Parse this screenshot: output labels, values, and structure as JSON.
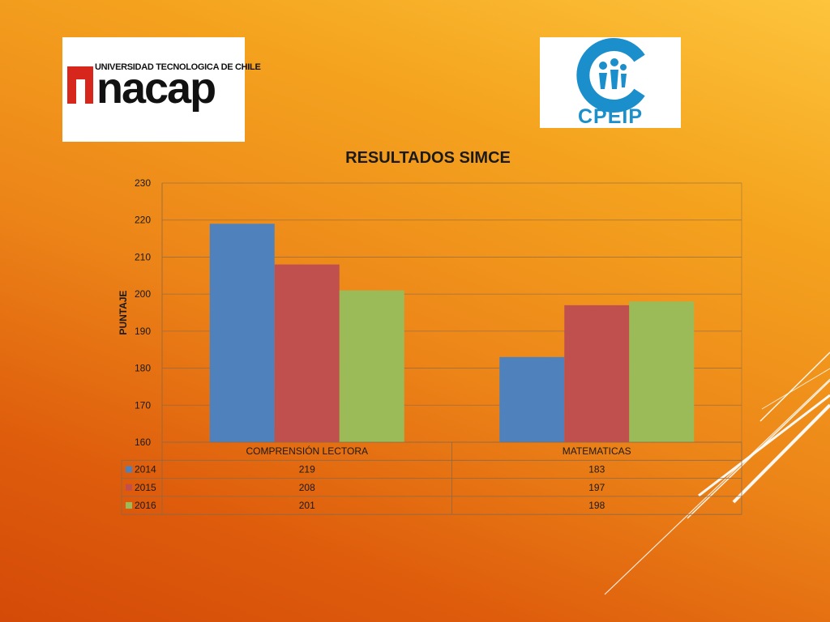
{
  "logos": {
    "inacap": {
      "tagline": "UNIVERSIDAD TECNOLOGICA DE CHILE",
      "name": "nacap"
    },
    "cpeip": {
      "name": "CPEIP"
    }
  },
  "chart_data": {
    "type": "bar",
    "title": "RESULTADOS SIMCE",
    "ylabel": "PUNTAJE",
    "xlabel": "",
    "ylim": [
      160,
      230
    ],
    "yticks": [
      160,
      170,
      180,
      190,
      200,
      210,
      220,
      230
    ],
    "categories": [
      "COMPRENSIÓN LECTORA",
      "MATEMATICAS"
    ],
    "series": [
      {
        "name": "2014",
        "values": [
          219,
          183
        ],
        "color": "#4f81bd"
      },
      {
        "name": "2015",
        "values": [
          208,
          197
        ],
        "color": "#c0504d"
      },
      {
        "name": "2016",
        "values": [
          201,
          198
        ],
        "color": "#9bbb59"
      }
    ],
    "grid": true,
    "legend": "data-table"
  }
}
